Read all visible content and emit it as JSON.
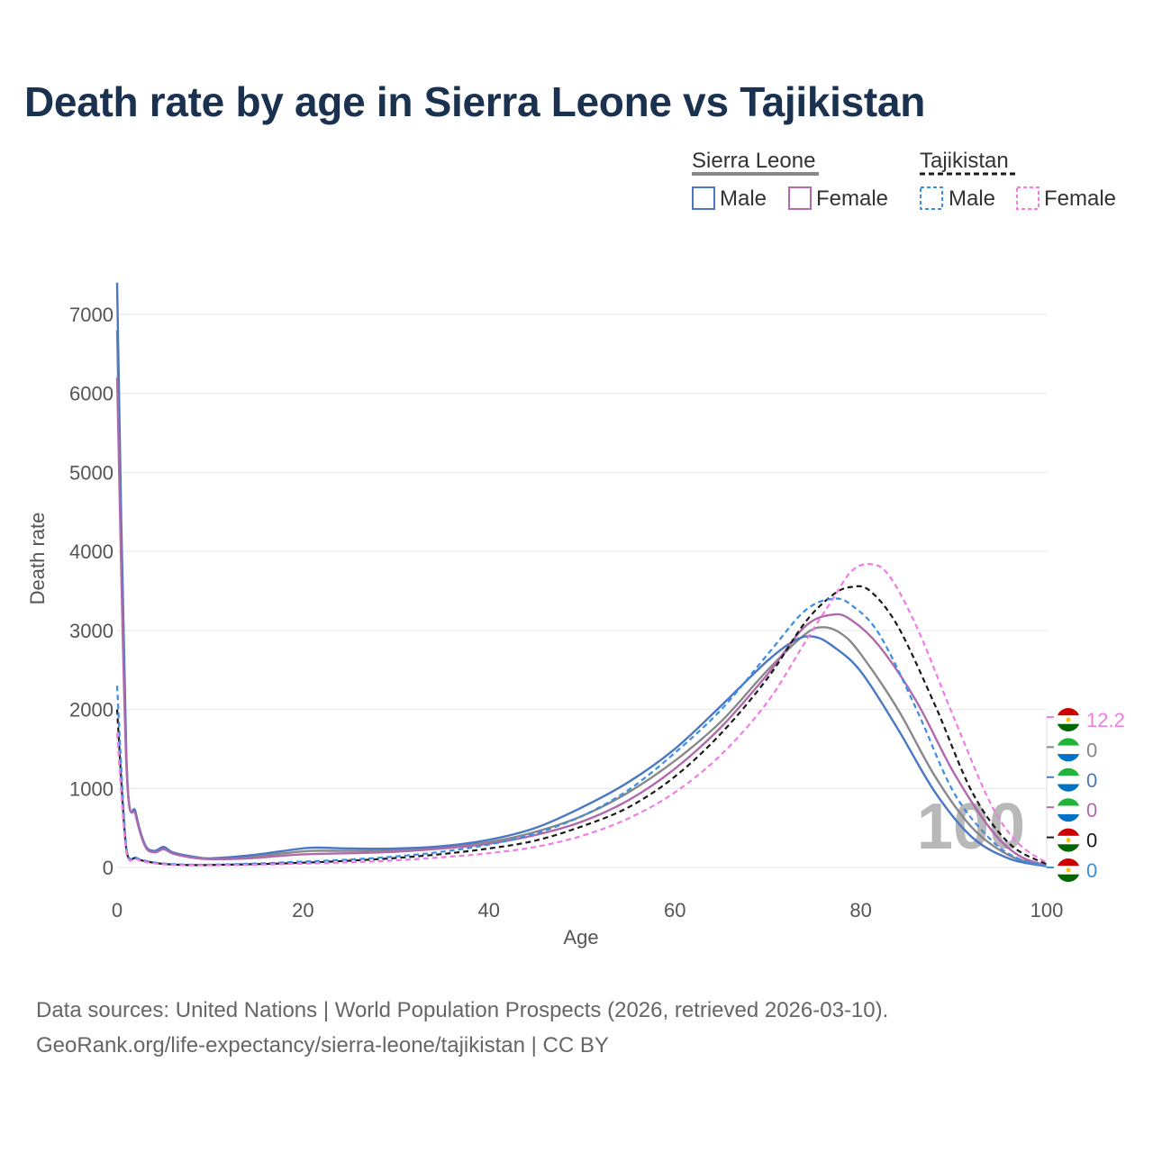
{
  "title": "Death rate by age in Sierra Leone vs Tajikistan",
  "source_line1": "Data sources: United Nations | World Population Prospects (2026, retrieved 2026-03-10).",
  "source_line2": "GeoRank.org/life-expectancy/sierra-leone/tajikistan | CC BY",
  "legend": {
    "sierra_leone": "Sierra Leone",
    "tajikistan": "Tajikistan",
    "male": "Male",
    "female": "Female"
  },
  "colors": {
    "sl_total": "#888888",
    "sl_male": "#4a78c4",
    "sl_female": "#b06aac",
    "tj_total": "#1a1a1a",
    "tj_male": "#3a8ee6",
    "tj_female": "#f07ce6"
  },
  "watermark_age": "100",
  "chart_data": {
    "type": "line",
    "xlabel": "Age",
    "ylabel": "Death rate",
    "xlim": [
      0,
      100
    ],
    "ylim": [
      0,
      7000
    ],
    "xticks": [
      0,
      20,
      40,
      60,
      80,
      100
    ],
    "yticks": [
      0,
      1000,
      2000,
      3000,
      4000,
      5000,
      6000,
      7000
    ],
    "series": [
      {
        "name": "Sierra Leone",
        "key": "sl_total",
        "dash": false,
        "points": [
          [
            0,
            6800
          ],
          [
            1,
            1350
          ],
          [
            2,
            680
          ],
          [
            3,
            280
          ],
          [
            4,
            200
          ],
          [
            5,
            240
          ],
          [
            6,
            180
          ],
          [
            8,
            130
          ],
          [
            10,
            110
          ],
          [
            14,
            130
          ],
          [
            18,
            180
          ],
          [
            21,
            210
          ],
          [
            25,
            210
          ],
          [
            30,
            220
          ],
          [
            35,
            250
          ],
          [
            40,
            320
          ],
          [
            45,
            450
          ],
          [
            50,
            650
          ],
          [
            55,
            950
          ],
          [
            60,
            1350
          ],
          [
            65,
            1850
          ],
          [
            70,
            2500
          ],
          [
            74,
            2950
          ],
          [
            76,
            3040
          ],
          [
            78,
            2950
          ],
          [
            80,
            2700
          ],
          [
            84,
            2000
          ],
          [
            88,
            1150
          ],
          [
            92,
            500
          ],
          [
            96,
            150
          ],
          [
            100,
            20
          ]
        ]
      },
      {
        "name": "Sierra Leone Male",
        "key": "sl_male",
        "dash": false,
        "points": [
          [
            0,
            7400
          ],
          [
            1,
            1400
          ],
          [
            2,
            700
          ],
          [
            3,
            290
          ],
          [
            4,
            210
          ],
          [
            5,
            260
          ],
          [
            6,
            190
          ],
          [
            8,
            140
          ],
          [
            10,
            115
          ],
          [
            14,
            150
          ],
          [
            18,
            210
          ],
          [
            21,
            250
          ],
          [
            25,
            240
          ],
          [
            30,
            240
          ],
          [
            35,
            270
          ],
          [
            40,
            350
          ],
          [
            45,
            500
          ],
          [
            50,
            760
          ],
          [
            55,
            1080
          ],
          [
            60,
            1500
          ],
          [
            65,
            2050
          ],
          [
            70,
            2620
          ],
          [
            73,
            2880
          ],
          [
            75,
            2920
          ],
          [
            77,
            2800
          ],
          [
            80,
            2480
          ],
          [
            84,
            1750
          ],
          [
            88,
            950
          ],
          [
            92,
            380
          ],
          [
            96,
            110
          ],
          [
            100,
            15
          ]
        ]
      },
      {
        "name": "Sierra Leone Female",
        "key": "sl_female",
        "dash": false,
        "points": [
          [
            0,
            6200
          ],
          [
            1,
            1300
          ],
          [
            2,
            660
          ],
          [
            3,
            270
          ],
          [
            4,
            190
          ],
          [
            5,
            230
          ],
          [
            6,
            175
          ],
          [
            8,
            125
          ],
          [
            10,
            105
          ],
          [
            14,
            115
          ],
          [
            18,
            150
          ],
          [
            21,
            170
          ],
          [
            25,
            180
          ],
          [
            30,
            200
          ],
          [
            35,
            240
          ],
          [
            40,
            300
          ],
          [
            45,
            410
          ],
          [
            50,
            580
          ],
          [
            55,
            850
          ],
          [
            60,
            1250
          ],
          [
            65,
            1780
          ],
          [
            70,
            2450
          ],
          [
            74,
            3050
          ],
          [
            77,
            3200
          ],
          [
            79,
            3130
          ],
          [
            82,
            2800
          ],
          [
            86,
            2100
          ],
          [
            90,
            1200
          ],
          [
            94,
            480
          ],
          [
            97,
            150
          ],
          [
            100,
            25
          ]
        ]
      },
      {
        "name": "Tajikistan",
        "key": "tj_total",
        "dash": true,
        "points": [
          [
            0,
            2000
          ],
          [
            1,
            220
          ],
          [
            2,
            120
          ],
          [
            3,
            80
          ],
          [
            5,
            45
          ],
          [
            8,
            30
          ],
          [
            12,
            35
          ],
          [
            16,
            45
          ],
          [
            20,
            60
          ],
          [
            25,
            85
          ],
          [
            30,
            120
          ],
          [
            35,
            170
          ],
          [
            40,
            240
          ],
          [
            45,
            340
          ],
          [
            50,
            520
          ],
          [
            55,
            760
          ],
          [
            60,
            1150
          ],
          [
            65,
            1700
          ],
          [
            70,
            2400
          ],
          [
            74,
            3100
          ],
          [
            77,
            3450
          ],
          [
            79,
            3550
          ],
          [
            81,
            3500
          ],
          [
            84,
            3050
          ],
          [
            88,
            2050
          ],
          [
            92,
            950
          ],
          [
            96,
            300
          ],
          [
            100,
            40
          ]
        ]
      },
      {
        "name": "Tajikistan Male",
        "key": "tj_male",
        "dash": true,
        "points": [
          [
            0,
            2300
          ],
          [
            1,
            250
          ],
          [
            2,
            130
          ],
          [
            3,
            85
          ],
          [
            5,
            50
          ],
          [
            8,
            35
          ],
          [
            12,
            40
          ],
          [
            16,
            55
          ],
          [
            20,
            75
          ],
          [
            25,
            100
          ],
          [
            30,
            140
          ],
          [
            35,
            200
          ],
          [
            40,
            290
          ],
          [
            45,
            430
          ],
          [
            50,
            650
          ],
          [
            55,
            980
          ],
          [
            60,
            1450
          ],
          [
            65,
            2000
          ],
          [
            70,
            2700
          ],
          [
            74,
            3250
          ],
          [
            77,
            3400
          ],
          [
            79,
            3320
          ],
          [
            82,
            2950
          ],
          [
            86,
            2000
          ],
          [
            90,
            950
          ],
          [
            94,
            350
          ],
          [
            97,
            110
          ],
          [
            100,
            20
          ]
        ]
      },
      {
        "name": "Tajikistan Female",
        "key": "tj_female",
        "dash": true,
        "points": [
          [
            0,
            1700
          ],
          [
            1,
            190
          ],
          [
            2,
            110
          ],
          [
            3,
            70
          ],
          [
            5,
            40
          ],
          [
            8,
            28
          ],
          [
            12,
            30
          ],
          [
            16,
            38
          ],
          [
            20,
            48
          ],
          [
            25,
            65
          ],
          [
            30,
            90
          ],
          [
            35,
            130
          ],
          [
            40,
            180
          ],
          [
            45,
            260
          ],
          [
            50,
            400
          ],
          [
            55,
            620
          ],
          [
            60,
            950
          ],
          [
            65,
            1430
          ],
          [
            70,
            2100
          ],
          [
            74,
            2850
          ],
          [
            77,
            3400
          ],
          [
            79,
            3750
          ],
          [
            81,
            3840
          ],
          [
            83,
            3700
          ],
          [
            86,
            3050
          ],
          [
            90,
            1900
          ],
          [
            94,
            800
          ],
          [
            97,
            300
          ],
          [
            100,
            60
          ]
        ]
      }
    ],
    "end_labels": [
      {
        "key": "tj_female",
        "value": "12.2",
        "flag": "tj"
      },
      {
        "key": "sl_total",
        "value": "0",
        "flag": "sl"
      },
      {
        "key": "sl_male",
        "value": "0",
        "flag": "sl"
      },
      {
        "key": "sl_female",
        "value": "0",
        "flag": "sl"
      },
      {
        "key": "tj_total",
        "value": "0",
        "flag": "tj"
      },
      {
        "key": "tj_male",
        "value": "0",
        "flag": "tj"
      }
    ]
  }
}
